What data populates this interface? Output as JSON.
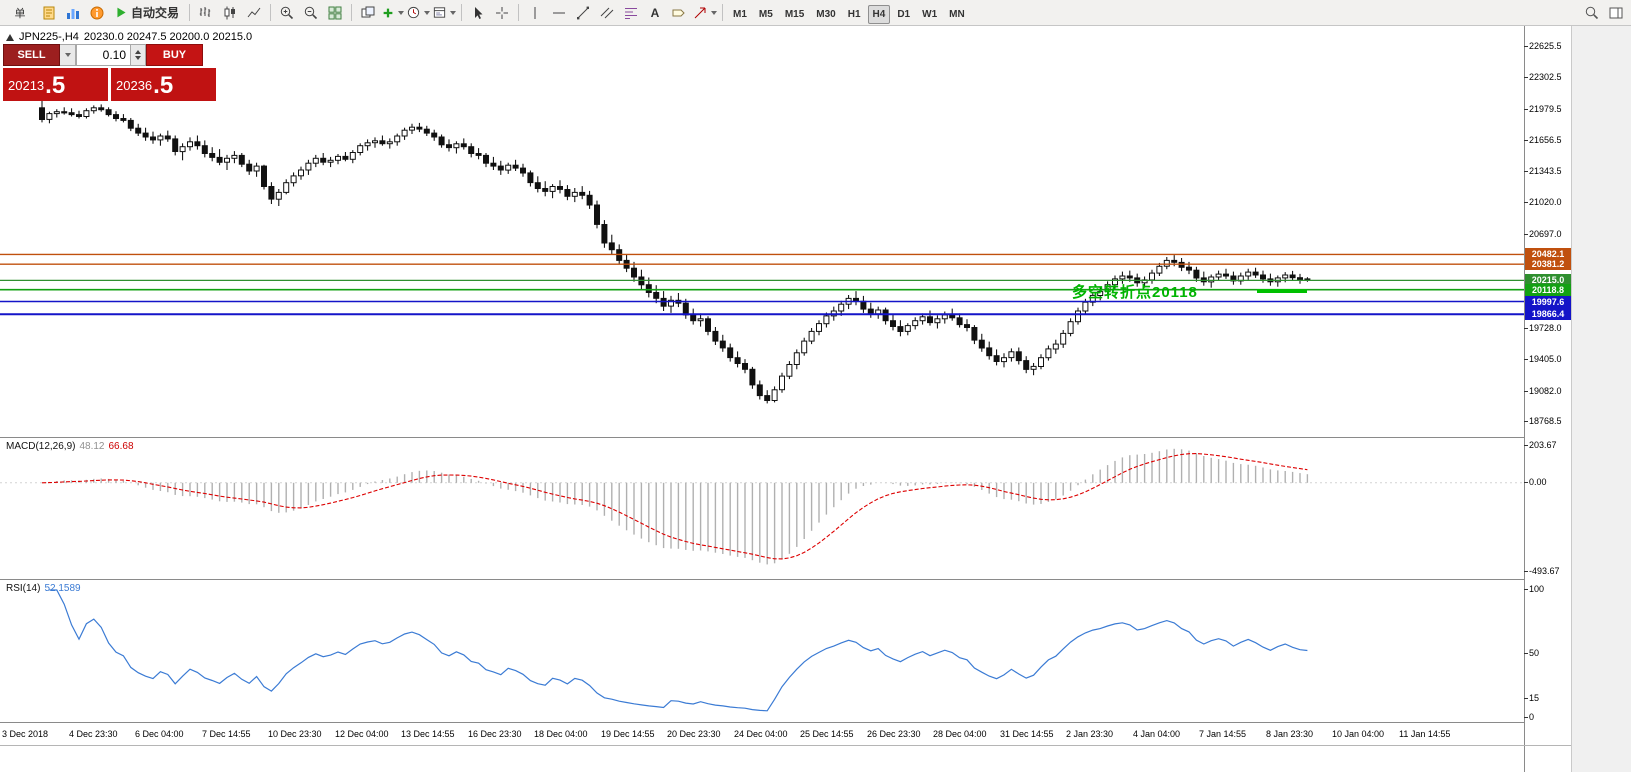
{
  "toolbar": {
    "menu_label": "单",
    "autotrade_label": "自动交易",
    "text_tool_label": "A",
    "timeframes": [
      "M1",
      "M5",
      "M15",
      "M30",
      "H1",
      "H4",
      "D1",
      "W1",
      "MN"
    ],
    "active_timeframe": "H4"
  },
  "chart": {
    "symbol_period": "JPN225-,H4",
    "ohlc_text": "20230.0 20247.5 20200.0 20215.0",
    "annotation": {
      "text": "多空转折点20118",
      "color": "#00b400"
    },
    "levels": [
      {
        "label": "20482.1",
        "price": 20482.1,
        "color": "#c0500e",
        "width": 1.4
      },
      {
        "label": "20381.2",
        "price": 20381.2,
        "color": "#c0500e",
        "width": 1.4
      },
      {
        "label": "20215.0",
        "price": 20215.0,
        "color": "#2f8f2f",
        "width": 1.2
      },
      {
        "label": "20118.8",
        "price": 20118.8,
        "color": "#13a113",
        "width": 1.6
      },
      {
        "label": "19997.6",
        "price": 19997.6,
        "color": "#1414c8",
        "width": 1.4
      },
      {
        "label": "19866.4",
        "price": 19866.4,
        "color": "#1414c8",
        "width": 2
      }
    ],
    "y_axis_labels": [
      "22625.5",
      "22302.5",
      "21979.5",
      "21656.5",
      "21343.5",
      "21020.0",
      "20697.0",
      "19728.0",
      "19405.0",
      "19082.0",
      "18768.5"
    ],
    "x_axis_labels": [
      "3 Dec 2018",
      "4 Dec 23:30",
      "6 Dec 04:00",
      "7 Dec 14:55",
      "10 Dec 23:30",
      "12 Dec 04:00",
      "13 Dec 14:55",
      "16 Dec 23:30",
      "18 Dec 04:00",
      "19 Dec 14:55",
      "20 Dec 23:30",
      "24 Dec 04:00",
      "25 Dec 14:55",
      "26 Dec 23:30",
      "28 Dec 04:00",
      "31 Dec 14:55",
      "2 Jan 23:30",
      "4 Jan 04:00",
      "7 Jan 14:55",
      "8 Jan 23:30",
      "10 Jan 04:00",
      "11 Jan 14:55"
    ]
  },
  "trade_panel": {
    "sell_label": "SELL",
    "buy_label": "BUY",
    "lot_size": "0.10",
    "sell_price_main": "20213",
    "sell_price_big": ".5",
    "buy_price_main": "20236",
    "buy_price_big": ".5"
  },
  "macd": {
    "label": "MACD(12,26,9)",
    "value_main": "48.12",
    "value_signal": "66.68",
    "axis": [
      "203.67",
      "0.00",
      "-493.67"
    ],
    "range": {
      "max": 203.67,
      "min": -493.67
    }
  },
  "rsi": {
    "label": "RSI(14)",
    "value": "52.1589",
    "axis": [
      "100",
      "50",
      "15",
      "0"
    ],
    "range": {
      "max": 100,
      "min": 0
    }
  },
  "chart_data": [
    {
      "type": "candlestick",
      "title": "JPN225-,H4",
      "symbol": "JPN225-",
      "timeframe": "H4",
      "ylim": [
        18768.5,
        22625.5
      ],
      "y_ticks": [
        22625.5,
        22302.5,
        21979.5,
        21656.5,
        21343.5,
        21020.0,
        20697.0,
        19728.0,
        19405.0,
        19082.0,
        18768.5
      ],
      "x_tick_labels": [
        "3 Dec 2018",
        "4 Dec 23:30",
        "6 Dec 04:00",
        "7 Dec 14:55",
        "10 Dec 23:30",
        "12 Dec 04:00",
        "13 Dec 14:55",
        "16 Dec 23:30",
        "18 Dec 04:00",
        "19 Dec 14:55",
        "20 Dec 23:30",
        "24 Dec 04:00",
        "25 Dec 14:55",
        "26 Dec 23:30",
        "28 Dec 04:00",
        "31 Dec 14:55",
        "2 Jan 23:30",
        "4 Jan 04:00",
        "7 Jan 14:55",
        "8 Jan 23:30",
        "10 Jan 04:00",
        "11 Jan 14:55"
      ],
      "horizontal_levels": [
        20482.1,
        20381.2,
        20215.0,
        20118.8,
        19997.6,
        19866.4
      ],
      "ohlc": [
        [
          21990,
          22060,
          21840,
          21870
        ],
        [
          21870,
          21950,
          21830,
          21930
        ],
        [
          21930,
          21975,
          21890,
          21950
        ],
        [
          21950,
          21995,
          21920,
          21940
        ],
        [
          21940,
          21985,
          21900,
          21920
        ],
        [
          21920,
          21960,
          21880,
          21900
        ],
        [
          21900,
          21985,
          21880,
          21960
        ],
        [
          21960,
          22015,
          21930,
          21990
        ],
        [
          21990,
          22025,
          21950,
          21970
        ],
        [
          21970,
          21995,
          21900,
          21920
        ],
        [
          21920,
          21955,
          21850,
          21880
        ],
        [
          21880,
          21925,
          21840,
          21860
        ],
        [
          21860,
          21885,
          21750,
          21780
        ],
        [
          21780,
          21825,
          21700,
          21730
        ],
        [
          21730,
          21785,
          21650,
          21690
        ],
        [
          21690,
          21745,
          21620,
          21660
        ],
        [
          21660,
          21725,
          21600,
          21700
        ],
        [
          21700,
          21755,
          21640,
          21670
        ],
        [
          21670,
          21705,
          21500,
          21540
        ],
        [
          21540,
          21625,
          21450,
          21590
        ],
        [
          21590,
          21685,
          21550,
          21640
        ],
        [
          21640,
          21705,
          21560,
          21600
        ],
        [
          21600,
          21655,
          21480,
          21520
        ],
        [
          21520,
          21585,
          21440,
          21480
        ],
        [
          21480,
          21565,
          21400,
          21430
        ],
        [
          21430,
          21505,
          21350,
          21470
        ],
        [
          21470,
          21545,
          21420,
          21500
        ],
        [
          21500,
          21525,
          21380,
          21410
        ],
        [
          21410,
          21455,
          21300,
          21340
        ],
        [
          21340,
          21425,
          21280,
          21390
        ],
        [
          21390,
          21405,
          21150,
          21180
        ],
        [
          21180,
          21225,
          21000,
          21050
        ],
        [
          21050,
          21155,
          20980,
          21120
        ],
        [
          21120,
          21255,
          21100,
          21220
        ],
        [
          21220,
          21325,
          21180,
          21290
        ],
        [
          21290,
          21385,
          21250,
          21350
        ],
        [
          21350,
          21455,
          21300,
          21420
        ],
        [
          21420,
          21505,
          21380,
          21470
        ],
        [
          21470,
          21525,
          21400,
          21430
        ],
        [
          21430,
          21485,
          21380,
          21450
        ],
        [
          21450,
          21515,
          21410,
          21490
        ],
        [
          21490,
          21535,
          21440,
          21460
        ],
        [
          21460,
          21555,
          21420,
          21530
        ],
        [
          21530,
          21625,
          21500,
          21600
        ],
        [
          21600,
          21665,
          21550,
          21630
        ],
        [
          21630,
          21685,
          21580,
          21650
        ],
        [
          21650,
          21705,
          21600,
          21620
        ],
        [
          21620,
          21675,
          21570,
          21640
        ],
        [
          21640,
          21725,
          21600,
          21700
        ],
        [
          21700,
          21785,
          21660,
          21760
        ],
        [
          21760,
          21825,
          21720,
          21790
        ],
        [
          21790,
          21835,
          21740,
          21770
        ],
        [
          21770,
          21805,
          21700,
          21730
        ],
        [
          21730,
          21765,
          21650,
          21690
        ],
        [
          21690,
          21715,
          21580,
          21610
        ],
        [
          21610,
          21665,
          21540,
          21580
        ],
        [
          21580,
          21645,
          21520,
          21620
        ],
        [
          21620,
          21675,
          21560,
          21590
        ],
        [
          21590,
          21625,
          21480,
          21520
        ],
        [
          21520,
          21575,
          21460,
          21500
        ],
        [
          21500,
          21525,
          21380,
          21420
        ],
        [
          21420,
          21485,
          21350,
          21390
        ],
        [
          21390,
          21445,
          21300,
          21350
        ],
        [
          21350,
          21425,
          21310,
          21400
        ],
        [
          21400,
          21455,
          21340,
          21370
        ],
        [
          21370,
          21415,
          21280,
          21320
        ],
        [
          21320,
          21345,
          21180,
          21220
        ],
        [
          21220,
          21285,
          21120,
          21160
        ],
        [
          21160,
          21235,
          21080,
          21130
        ],
        [
          21130,
          21205,
          21060,
          21180
        ],
        [
          21180,
          21245,
          21110,
          21150
        ],
        [
          21150,
          21195,
          21040,
          21080
        ],
        [
          21080,
          21165,
          21020,
          21120
        ],
        [
          21120,
          21185,
          21050,
          21090
        ],
        [
          21090,
          21135,
          20950,
          20990
        ],
        [
          20990,
          21035,
          20750,
          20790
        ],
        [
          20790,
          20835,
          20550,
          20600
        ],
        [
          20600,
          20685,
          20480,
          20530
        ],
        [
          20530,
          20585,
          20380,
          20420
        ],
        [
          20420,
          20485,
          20300,
          20340
        ],
        [
          20340,
          20405,
          20200,
          20250
        ],
        [
          20250,
          20325,
          20120,
          20170
        ],
        [
          20170,
          20245,
          20040,
          20090
        ],
        [
          20090,
          20165,
          19980,
          20030
        ],
        [
          20030,
          20105,
          19900,
          19950
        ],
        [
          19950,
          20055,
          19880,
          20010
        ],
        [
          20010,
          20085,
          19940,
          19980
        ],
        [
          19980,
          20025,
          19820,
          19860
        ],
        [
          19860,
          19925,
          19760,
          19800
        ],
        [
          19800,
          19875,
          19740,
          19820
        ],
        [
          19820,
          19845,
          19650,
          19690
        ],
        [
          19690,
          19735,
          19550,
          19590
        ],
        [
          19590,
          19655,
          19480,
          19520
        ],
        [
          19520,
          19565,
          19380,
          19420
        ],
        [
          19420,
          19485,
          19320,
          19360
        ],
        [
          19360,
          19405,
          19260,
          19300
        ],
        [
          19300,
          19325,
          19100,
          19140
        ],
        [
          19140,
          19185,
          18990,
          19030
        ],
        [
          19030,
          19085,
          18950,
          18980
        ],
        [
          18980,
          19125,
          18960,
          19090
        ],
        [
          19090,
          19265,
          19060,
          19230
        ],
        [
          19230,
          19385,
          19200,
          19350
        ],
        [
          19350,
          19505,
          19300,
          19470
        ],
        [
          19470,
          19625,
          19440,
          19590
        ],
        [
          19590,
          19725,
          19560,
          19690
        ],
        [
          19690,
          19805,
          19650,
          19770
        ],
        [
          19770,
          19885,
          19730,
          19850
        ],
        [
          19850,
          19945,
          19800,
          19900
        ],
        [
          19900,
          20005,
          19850,
          19970
        ],
        [
          19970,
          20065,
          19920,
          20030
        ],
        [
          20030,
          20105,
          19960,
          20000
        ],
        [
          20000,
          20055,
          19880,
          19920
        ],
        [
          19920,
          19985,
          19830,
          19870
        ],
        [
          19870,
          19945,
          19820,
          19910
        ],
        [
          19910,
          19935,
          19760,
          19800
        ],
        [
          19800,
          19865,
          19700,
          19740
        ],
        [
          19740,
          19805,
          19640,
          19690
        ],
        [
          19690,
          19775,
          19650,
          19750
        ],
        [
          19750,
          19835,
          19710,
          19800
        ],
        [
          19800,
          19875,
          19760,
          19840
        ],
        [
          19840,
          19905,
          19750,
          19780
        ],
        [
          19780,
          19855,
          19720,
          19820
        ],
        [
          19820,
          19895,
          19770,
          19860
        ],
        [
          19860,
          19925,
          19800,
          19830
        ],
        [
          19830,
          19875,
          19730,
          19760
        ],
        [
          19760,
          19815,
          19690,
          19730
        ],
        [
          19730,
          19755,
          19560,
          19600
        ],
        [
          19600,
          19665,
          19480,
          19520
        ],
        [
          19520,
          19585,
          19400,
          19440
        ],
        [
          19440,
          19505,
          19340,
          19380
        ],
        [
          19380,
          19465,
          19320,
          19420
        ],
        [
          19420,
          19515,
          19380,
          19480
        ],
        [
          19480,
          19525,
          19350,
          19390
        ],
        [
          19390,
          19435,
          19260,
          19300
        ],
        [
          19300,
          19365,
          19240,
          19330
        ],
        [
          19330,
          19455,
          19300,
          19420
        ],
        [
          19420,
          19545,
          19390,
          19510
        ],
        [
          19510,
          19605,
          19460,
          19560
        ],
        [
          19560,
          19705,
          19520,
          19670
        ],
        [
          19670,
          19825,
          19640,
          19790
        ],
        [
          19790,
          19935,
          19760,
          19900
        ],
        [
          19900,
          20025,
          19860,
          19990
        ],
        [
          19990,
          20095,
          19950,
          20060
        ],
        [
          20060,
          20145,
          20010,
          20100
        ],
        [
          20100,
          20205,
          20060,
          20170
        ],
        [
          20170,
          20265,
          20130,
          20230
        ],
        [
          20230,
          20305,
          20180,
          20260
        ],
        [
          20260,
          20315,
          20200,
          20240
        ],
        [
          20240,
          20285,
          20150,
          20190
        ],
        [
          20190,
          20255,
          20140,
          20220
        ],
        [
          20220,
          20325,
          20180,
          20290
        ],
        [
          20290,
          20395,
          20260,
          20360
        ],
        [
          20360,
          20455,
          20330,
          20420
        ],
        [
          20420,
          20475,
          20360,
          20400
        ],
        [
          20400,
          20445,
          20310,
          20350
        ],
        [
          20350,
          20405,
          20280,
          20320
        ],
        [
          20320,
          20355,
          20200,
          20240
        ],
        [
          20240,
          20305,
          20160,
          20200
        ],
        [
          20200,
          20275,
          20140,
          20250
        ],
        [
          20250,
          20315,
          20210,
          20280
        ],
        [
          20280,
          20335,
          20230,
          20260
        ],
        [
          20260,
          20305,
          20170,
          20210
        ],
        [
          20210,
          20295,
          20170,
          20260
        ],
        [
          20260,
          20335,
          20220,
          20300
        ],
        [
          20300,
          20345,
          20240,
          20270
        ],
        [
          20270,
          20315,
          20190,
          20230
        ],
        [
          20230,
          20285,
          20160,
          20200
        ],
        [
          20200,
          20265,
          20150,
          20240
        ],
        [
          20240,
          20300,
          20195,
          20270
        ],
        [
          20270,
          20312,
          20210,
          20242
        ],
        [
          20242,
          20282,
          20180,
          20222
        ],
        [
          20230,
          20247.5,
          20200,
          20215
        ]
      ]
    },
    {
      "type": "bar",
      "title": "MACD(12,26,9)",
      "displayed_values": [
        48.12,
        66.68
      ],
      "axis_ticks": [
        203.67,
        0.0,
        -493.67
      ],
      "ylim": [
        -493.67,
        203.67
      ],
      "note_params": {
        "fast": 12,
        "slow": 26,
        "signal": 9
      }
    },
    {
      "type": "line",
      "title": "RSI(14)",
      "displayed_value": 52.1589,
      "axis_ticks": [
        100,
        50,
        15,
        0
      ],
      "ylim": [
        0,
        100
      ],
      "note_params": {
        "period": 14
      }
    }
  ]
}
